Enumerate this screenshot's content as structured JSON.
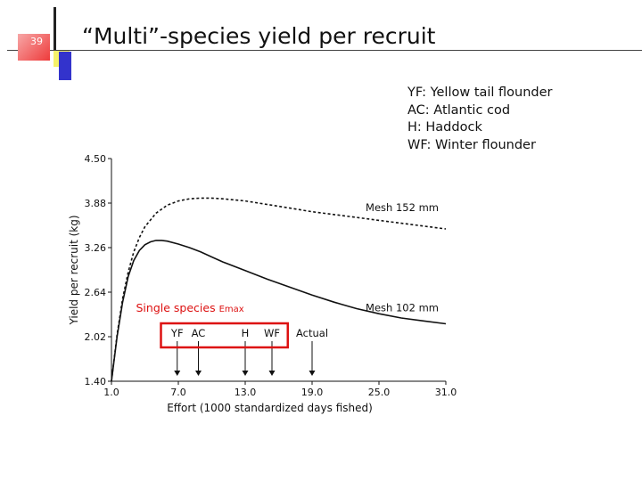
{
  "slide": {
    "number": "39",
    "title": "“Multi”-species yield per recruit",
    "colors": {
      "accent_yellow": "#f5f26a",
      "accent_blue": "#3333cc",
      "accent_red": "#ee3b3b",
      "callout_red": "#dd1111"
    }
  },
  "legend": [
    "YF: Yellow tail flounder",
    "AC: Atlantic cod",
    "H:  Haddock",
    "WF: Winter flounder"
  ],
  "chart_data": {
    "type": "line",
    "xlabel": "Effort (1000 standardized days fished)",
    "ylabel": "Yield per recruit (kg)",
    "xlim": [
      1.0,
      31.0
    ],
    "ylim": [
      1.4,
      4.5
    ],
    "xticks": [
      "1.0",
      "7.0",
      "13.0",
      "19.0",
      "25.0",
      "31.0"
    ],
    "yticks": [
      "1.40",
      "2.02",
      "2.64",
      "3.26",
      "3.88",
      "4.50"
    ],
    "series": [
      {
        "name": "Mesh 152 mm",
        "style": "dashed",
        "x": [
          1.0,
          1.5,
          2.0,
          2.5,
          3.0,
          3.5,
          4.0,
          5.0,
          6.0,
          7.0,
          8.0,
          9.0,
          10.0,
          11.0,
          13.0,
          15.0,
          17.0,
          19.0,
          21.0,
          23.0,
          25.0,
          27.0,
          29.0,
          31.0
        ],
        "y": [
          1.4,
          2.05,
          2.55,
          2.92,
          3.2,
          3.4,
          3.55,
          3.74,
          3.85,
          3.91,
          3.94,
          3.95,
          3.95,
          3.94,
          3.91,
          3.86,
          3.81,
          3.76,
          3.72,
          3.68,
          3.64,
          3.6,
          3.56,
          3.52
        ]
      },
      {
        "name": "Mesh 102 mm",
        "style": "solid",
        "x": [
          1.0,
          1.5,
          2.0,
          2.5,
          3.0,
          3.5,
          4.0,
          4.5,
          5.0,
          5.5,
          6.0,
          7.0,
          8.0,
          9.0,
          10.0,
          11.0,
          13.0,
          15.0,
          17.0,
          19.0,
          21.0,
          23.0,
          25.0,
          27.0,
          29.0,
          31.0
        ],
        "y": [
          1.4,
          2.02,
          2.5,
          2.86,
          3.08,
          3.22,
          3.3,
          3.34,
          3.36,
          3.36,
          3.35,
          3.31,
          3.26,
          3.2,
          3.13,
          3.06,
          2.94,
          2.82,
          2.71,
          2.6,
          2.5,
          2.41,
          2.34,
          2.28,
          2.24,
          2.2
        ]
      }
    ],
    "annotations": [
      {
        "text": "YF",
        "x": 6.9
      },
      {
        "text": "AC",
        "x": 8.8
      },
      {
        "text": "H",
        "x": 13.0
      },
      {
        "text": "WF",
        "x": 15.4
      },
      {
        "text": "Actual",
        "x": 19.0
      }
    ],
    "callout": {
      "text": "Single species",
      "subscript_text": "Emax",
      "boxed_labels": [
        "YF",
        "AC",
        "H",
        "WF"
      ]
    }
  }
}
